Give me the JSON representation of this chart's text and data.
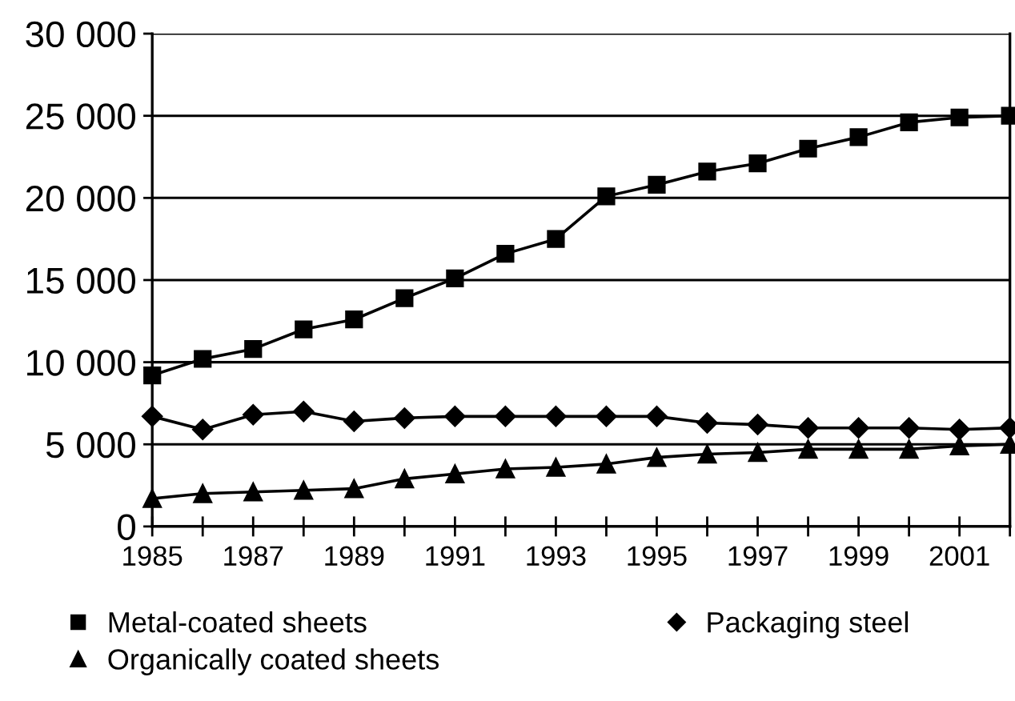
{
  "chart_data": {
    "type": "line",
    "x": [
      1985,
      1986,
      1987,
      1988,
      1989,
      1990,
      1991,
      1992,
      1993,
      1994,
      1995,
      1996,
      1997,
      1998,
      1999,
      2000,
      2001,
      2002
    ],
    "series": [
      {
        "name": "Metal-coated sheets",
        "color": "#000000",
        "marker": "square",
        "values": [
          9200,
          10200,
          10800,
          12000,
          12600,
          13900,
          15100,
          16600,
          17500,
          20100,
          20800,
          21600,
          22100,
          23000,
          23700,
          24600,
          24900,
          25000
        ]
      },
      {
        "name": "Organically coated sheets",
        "color": "#000000",
        "marker": "triangle",
        "values": [
          1700,
          2000,
          2100,
          2200,
          2300,
          2900,
          3200,
          3500,
          3600,
          3800,
          4200,
          4400,
          4500,
          4700,
          4700,
          4700,
          4900,
          5000
        ]
      },
      {
        "name": "Packaging steel",
        "color": "#000000",
        "marker": "diamond",
        "values": [
          6700,
          5900,
          6800,
          7000,
          6400,
          6600,
          6700,
          6700,
          6700,
          6700,
          6700,
          6300,
          6200,
          6000,
          6000,
          6000,
          5900,
          6000
        ]
      }
    ],
    "xlim": [
      1985,
      2002
    ],
    "xticks": [
      1985,
      {
        "value": 1986,
        "label": null
      },
      1987,
      {
        "value": 1988,
        "label": null
      },
      1989,
      {
        "value": 1990,
        "label": null
      },
      1991,
      {
        "value": 1992,
        "label": null
      },
      1993,
      {
        "value": 1994,
        "label": null
      },
      1995,
      {
        "value": 1996,
        "label": null
      },
      1997,
      {
        "value": 1998,
        "label": null
      },
      1999,
      {
        "value": 2000,
        "label": null
      },
      2001,
      {
        "value": 2002,
        "label": null
      }
    ],
    "ylim": [
      0,
      30000
    ],
    "yticks": [
      0,
      {
        "value": 5000,
        "label": "5 000"
      },
      {
        "value": 10000,
        "label": "10 000"
      },
      {
        "value": 15000,
        "label": "15 000"
      },
      {
        "value": 20000,
        "label": "20 000"
      },
      {
        "value": 25000,
        "label": "25 000"
      },
      {
        "value": 30000,
        "label": "30 000"
      }
    ],
    "grid": "y",
    "legend": "bottom",
    "line_style": "solid"
  }
}
